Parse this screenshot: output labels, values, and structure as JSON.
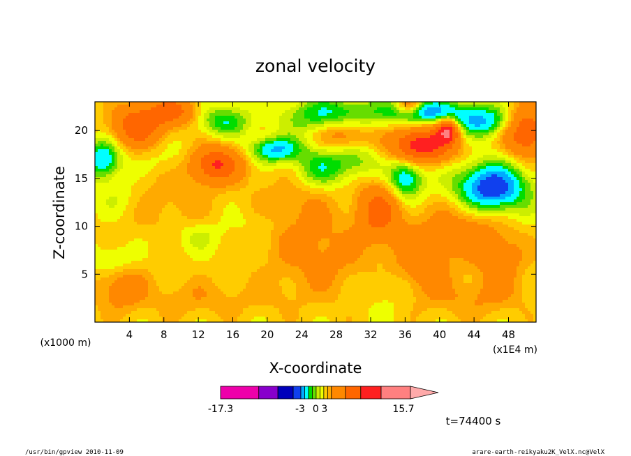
{
  "chart_data": {
    "type": "heatmap",
    "title": "zonal velocity",
    "xlabel": "X-coordinate",
    "ylabel": "Z-coordinate",
    "x_unit_label": "(x1E4 m)",
    "z_unit_label": "(x1000 m)",
    "xlim": [
      0,
      51.2
    ],
    "ylim": [
      0,
      23
    ],
    "x_ticks": [
      "4",
      "8",
      "12",
      "16",
      "20",
      "24",
      "28",
      "32",
      "36",
      "40",
      "44",
      "48"
    ],
    "y_ticks": [
      "5",
      "10",
      "15",
      "20"
    ],
    "grid": false,
    "levels": [
      -17.3,
      -15,
      -12,
      -9,
      -6,
      -4.5,
      -3,
      -2,
      -1,
      0,
      1,
      2,
      3,
      6,
      9,
      12,
      15.7
    ],
    "colorbar_labels": [
      "-17.3",
      "-3",
      "0",
      "3",
      "15.7"
    ],
    "colors": [
      "#ee00aa",
      "#8800cc",
      "#0000bb",
      "#1040ee",
      "#00aaff",
      "#00ffff",
      "#00dd00",
      "#66dd00",
      "#ccee00",
      "#eeff00",
      "#ffcc00",
      "#ffaa00",
      "#ff8800",
      "#ff6600",
      "#ff2020",
      "#ff8080"
    ],
    "time_label": "t=74400 s"
  },
  "footer": {
    "left": "/usr/bin/gpview   2010-11-09",
    "right": "arare-earth-reikyaku2K_VelX.nc@VelX"
  }
}
